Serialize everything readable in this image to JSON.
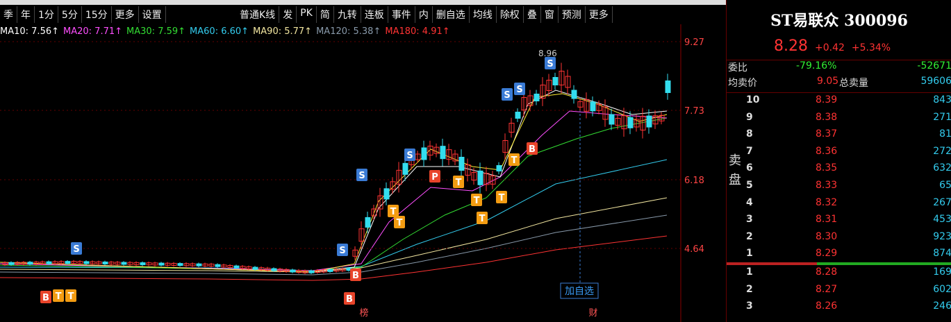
{
  "toolbar": {
    "periods": [
      "季",
      "年",
      "1分",
      "5分",
      "15分",
      "更多",
      "设置"
    ],
    "tools": [
      "普通K线",
      "发",
      "PK",
      "简",
      "九转",
      "连板",
      "事件",
      "内",
      "删自选",
      "均线",
      "除权",
      "叠",
      "窗",
      "预测",
      "更多"
    ]
  },
  "ma_legend": [
    {
      "label": "MA10: 7.56↑",
      "color": "#ffffff"
    },
    {
      "label": "MA20: 7.71↑",
      "color": "#ff4fff"
    },
    {
      "label": "MA30: 7.59↑",
      "color": "#33dd33"
    },
    {
      "label": "MA60: 6.60↑",
      "color": "#33ccee"
    },
    {
      "label": "MA90: 5.77↑",
      "color": "#f2e6a0"
    },
    {
      "label": "MA120: 5.38↑",
      "color": "#8899aa"
    },
    {
      "label": "MA180: 4.91↑",
      "color": "#ff3333"
    }
  ],
  "price_axis": [
    "9.27",
    "7.73",
    "6.18",
    "4.64"
  ],
  "chart_labels": {
    "max_price": "8.96",
    "add_button": "加自选",
    "bottom_tags": [
      "榜",
      "财"
    ],
    "badges": [
      {
        "text": "S",
        "color": "#3a7bd5"
      },
      {
        "text": "B",
        "color": "#e8442a"
      },
      {
        "text": "T",
        "color": "#f39c12"
      },
      {
        "text": "T",
        "color": "#f39c12"
      },
      {
        "text": "S",
        "color": "#3a7bd5"
      },
      {
        "text": "B",
        "color": "#e8442a"
      },
      {
        "text": "B",
        "color": "#e8442a"
      },
      {
        "text": "S",
        "color": "#3a7bd5"
      },
      {
        "text": "T",
        "color": "#f39c12"
      },
      {
        "text": "T",
        "color": "#f39c12"
      },
      {
        "text": "S",
        "color": "#3a7bd5"
      },
      {
        "text": "P",
        "color": "#e8442a"
      },
      {
        "text": "T",
        "color": "#f39c12"
      },
      {
        "text": "T",
        "color": "#f39c12"
      },
      {
        "text": "T",
        "color": "#f39c12"
      },
      {
        "text": "T",
        "color": "#f39c12"
      },
      {
        "text": "S",
        "color": "#3a7bd5"
      },
      {
        "text": "S",
        "color": "#3a7bd5"
      },
      {
        "text": "B",
        "color": "#e8442a"
      },
      {
        "text": "T",
        "color": "#f39c12"
      },
      {
        "text": "S",
        "color": "#3a7bd5"
      }
    ]
  },
  "quote": {
    "name": "ST易联众 300096",
    "price": "8.28",
    "change": "+0.42",
    "change_pct": "+5.34%"
  },
  "stats": {
    "ratio_label": "委比",
    "ratio_pct": "-79.16%",
    "ratio_diff": "-52671",
    "avg_sell_label": "均卖价",
    "avg_sell": "9.05",
    "total_sell_label": "总卖量",
    "total_sell": "59606"
  },
  "side_label": [
    "卖",
    "盘"
  ],
  "sell_orders": [
    {
      "level": "10",
      "price": "8.39",
      "volume": "843"
    },
    {
      "level": "9",
      "price": "8.38",
      "volume": "271"
    },
    {
      "level": "8",
      "price": "8.37",
      "volume": "81"
    },
    {
      "level": "7",
      "price": "8.36",
      "volume": "272"
    },
    {
      "level": "6",
      "price": "8.35",
      "volume": "632"
    },
    {
      "level": "5",
      "price": "8.33",
      "volume": "65"
    },
    {
      "level": "4",
      "price": "8.32",
      "volume": "267"
    },
    {
      "level": "3",
      "price": "8.31",
      "volume": "453"
    },
    {
      "level": "2",
      "price": "8.30",
      "volume": "923"
    },
    {
      "level": "1",
      "price": "8.29",
      "volume": "874"
    }
  ],
  "buy_orders": [
    {
      "level": "1",
      "price": "8.28",
      "volume": "169"
    },
    {
      "level": "2",
      "price": "8.27",
      "volume": "602"
    },
    {
      "level": "3",
      "price": "8.26",
      "volume": "246"
    }
  ]
}
